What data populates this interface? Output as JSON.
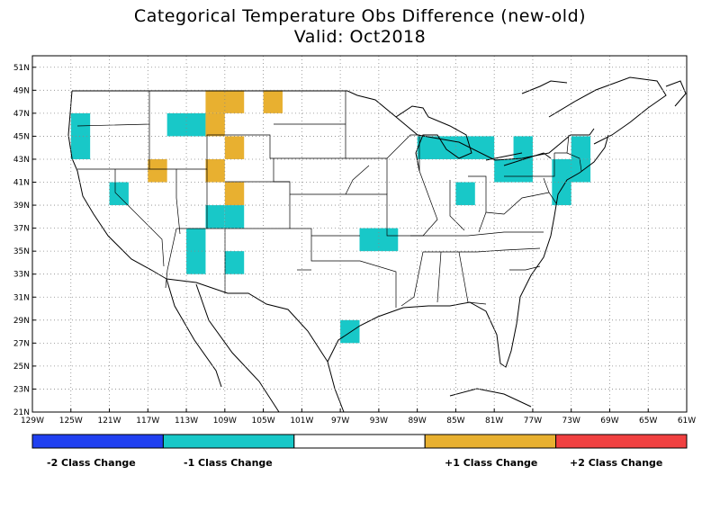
{
  "title_line1": "Categorical Temperature Obs Difference (new-old)",
  "title_line2": "Valid: Oct2018",
  "colors": {
    "minus2": "#2040f0",
    "minus1": "#18c8c8",
    "zero": "#ffffff",
    "plus1": "#e8b030",
    "plus2": "#f04040",
    "grid": "#888888",
    "border": "#000000"
  },
  "axis": {
    "lon_ticks": [
      "129W",
      "125W",
      "121W",
      "117W",
      "113W",
      "109W",
      "105W",
      "101W",
      "97W",
      "93W",
      "89W",
      "85W",
      "81W",
      "77W",
      "73W",
      "69W",
      "65W",
      "61W"
    ],
    "lat_ticks": [
      "21N",
      "23N",
      "25N",
      "27N",
      "29N",
      "31N",
      "33N",
      "35N",
      "37N",
      "39N",
      "41N",
      "43N",
      "45N",
      "47N",
      "49N",
      "51N"
    ]
  },
  "legend": {
    "labels": [
      "-2 Class Change",
      "-1 Class Change",
      "+1 Class Change",
      "+2 Class Change"
    ]
  },
  "cells": [
    {
      "lat": [
        43,
        47
      ],
      "lon": [
        -125,
        -123
      ],
      "cls": "minus1"
    },
    {
      "lat": [
        39,
        41
      ],
      "lon": [
        -121,
        -119
      ],
      "cls": "minus1"
    },
    {
      "lat": [
        41,
        43
      ],
      "lon": [
        -117,
        -115
      ],
      "cls": "plus1"
    },
    {
      "lat": [
        45,
        47
      ],
      "lon": [
        -115,
        -111
      ],
      "cls": "minus1"
    },
    {
      "lat": [
        47,
        49
      ],
      "lon": [
        -111,
        -107
      ],
      "cls": "plus1"
    },
    {
      "lat": [
        45,
        47
      ],
      "lon": [
        -111,
        -109
      ],
      "cls": "plus1"
    },
    {
      "lat": [
        43,
        45
      ],
      "lon": [
        -109,
        -107
      ],
      "cls": "plus1"
    },
    {
      "lat": [
        41,
        43
      ],
      "lon": [
        -111,
        -109
      ],
      "cls": "plus1"
    },
    {
      "lat": [
        47,
        49
      ],
      "lon": [
        -105,
        -103
      ],
      "cls": "plus1"
    },
    {
      "lat": [
        39,
        41
      ],
      "lon": [
        -109,
        -107
      ],
      "cls": "plus1"
    },
    {
      "lat": [
        37,
        39
      ],
      "lon": [
        -109,
        -107
      ],
      "cls": "minus1"
    },
    {
      "lat": [
        37,
        39
      ],
      "lon": [
        -111,
        -109
      ],
      "cls": "minus1"
    },
    {
      "lat": [
        33,
        37
      ],
      "lon": [
        -113,
        -111
      ],
      "cls": "minus1"
    },
    {
      "lat": [
        33,
        35
      ],
      "lon": [
        -109,
        -107
      ],
      "cls": "minus1"
    },
    {
      "lat": [
        35,
        37
      ],
      "lon": [
        -95,
        -91
      ],
      "cls": "minus1"
    },
    {
      "lat": [
        27,
        29
      ],
      "lon": [
        -97,
        -95
      ],
      "cls": "minus1"
    },
    {
      "lat": [
        43,
        45
      ],
      "lon": [
        -89,
        -81
      ],
      "cls": "minus1"
    },
    {
      "lat": [
        39,
        41
      ],
      "lon": [
        -85,
        -83
      ],
      "cls": "minus1"
    },
    {
      "lat": [
        41,
        43
      ],
      "lon": [
        -81,
        -77
      ],
      "cls": "minus1"
    },
    {
      "lat": [
        43,
        45
      ],
      "lon": [
        -79,
        -77
      ],
      "cls": "minus1"
    },
    {
      "lat": [
        39,
        41
      ],
      "lon": [
        -75,
        -73
      ],
      "cls": "minus1"
    },
    {
      "lat": [
        41,
        43
      ],
      "lon": [
        -75,
        -71
      ],
      "cls": "minus1"
    },
    {
      "lat": [
        43,
        45
      ],
      "lon": [
        -73,
        -71
      ],
      "cls": "minus1"
    }
  ]
}
